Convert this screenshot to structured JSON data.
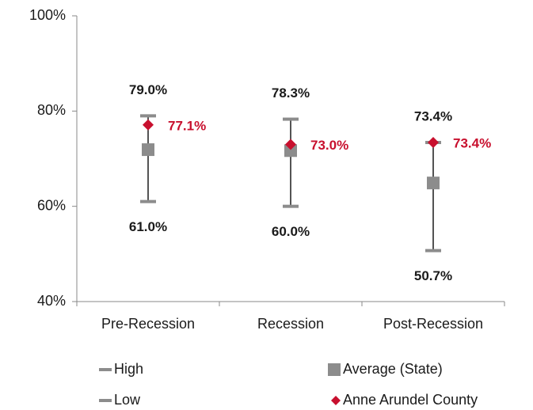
{
  "chart_data": {
    "type": "high-low",
    "categories": [
      "Pre-Recession",
      "Recession",
      "Post-Recession"
    ],
    "series": [
      {
        "name": "High",
        "color": "#8c8c8c",
        "marker": "dash",
        "values": [
          79.0,
          78.3,
          73.4
        ],
        "value_labels": [
          "79.0%",
          "78.3%",
          "73.4%"
        ],
        "label_color": "#1a1a1a"
      },
      {
        "name": "Low",
        "color": "#8c8c8c",
        "marker": "dash",
        "values": [
          61.0,
          60.0,
          50.7
        ],
        "value_labels": [
          "61.0%",
          "60.0%",
          "50.7%"
        ],
        "label_color": "#1a1a1a"
      },
      {
        "name": "Average (State)",
        "color": "#8c8c8c",
        "marker": "square",
        "values": [
          71.9,
          71.7,
          64.9
        ]
      },
      {
        "name": "Anne Arundel County",
        "color": "#c8102e",
        "marker": "diamond",
        "values": [
          77.1,
          73.0,
          73.4
        ],
        "value_labels": [
          "77.1%",
          "73.0%",
          "73.4%"
        ],
        "label_color": "#c8102e"
      }
    ],
    "ylim": [
      40,
      100
    ],
    "yticks": [
      {
        "value": 40,
        "label": "40%"
      },
      {
        "value": 60,
        "label": "60%"
      },
      {
        "value": 80,
        "label": "80%"
      },
      {
        "value": 100,
        "label": "100%"
      }
    ],
    "grid": false
  }
}
